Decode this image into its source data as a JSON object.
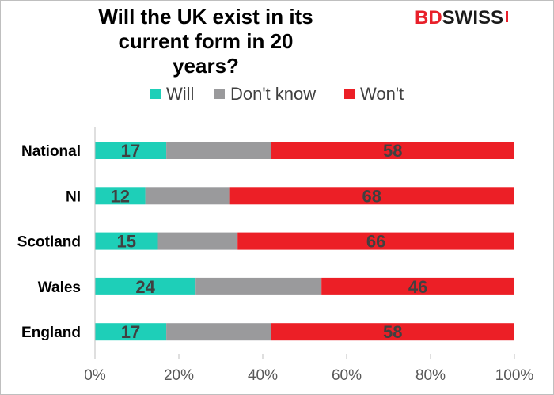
{
  "title": "Will the UK exist in its current form in 20 years?",
  "title_lines": [
    "Will the UK exist in its",
    "current form in 20 years?"
  ],
  "logo": {
    "part1": "BD",
    "part2": "SWISS"
  },
  "colors": {
    "will": "#1ecfb8",
    "dont_know": "#9a9a9c",
    "wont": "#ec1f26",
    "label_text": "#404040",
    "axis": "#bfbfbf",
    "tick_text": "#595959"
  },
  "chart_data": {
    "type": "bar",
    "orientation": "horizontal",
    "stacked": true,
    "categories": [
      "National",
      "NI",
      "Scotland",
      "Wales",
      "England"
    ],
    "series": [
      {
        "name": "Will",
        "values": [
          17,
          12,
          15,
          24,
          17
        ],
        "show_labels": true
      },
      {
        "name": "Don't know",
        "values": [
          25,
          20,
          19,
          30,
          25
        ],
        "show_labels": false
      },
      {
        "name": "Won't",
        "values": [
          58,
          68,
          66,
          46,
          58
        ],
        "show_labels": true
      }
    ],
    "xlim": [
      0,
      100
    ],
    "xticks": [
      "0%",
      "20%",
      "40%",
      "60%",
      "80%",
      "100%"
    ],
    "xtick_values": [
      0,
      20,
      40,
      60,
      80,
      100
    ],
    "legend": "top",
    "grid": false,
    "xlabel": "",
    "ylabel": ""
  }
}
